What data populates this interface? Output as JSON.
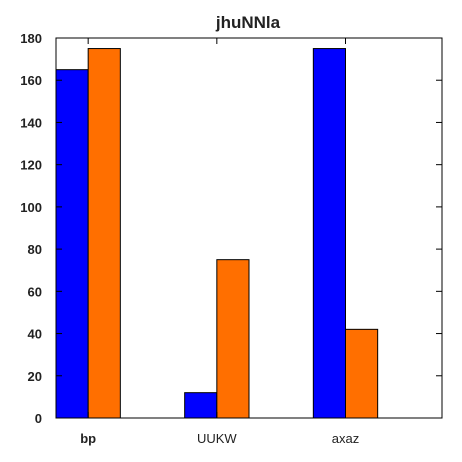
{
  "chart_data": {
    "type": "bar",
    "title": "jhuNNla",
    "xlabel": "",
    "ylabel": "",
    "categories": [
      "bp",
      "UUKW",
      "axaz"
    ],
    "series": [
      {
        "values": [
          165,
          12,
          175
        ],
        "color": "#0000ff"
      },
      {
        "values": [
          175,
          75,
          42
        ],
        "color": "#ff6f00"
      }
    ],
    "ylim": [
      0,
      180
    ],
    "yticks": [
      0,
      20,
      40,
      60,
      80,
      100,
      120,
      140,
      160,
      180
    ],
    "grid": false,
    "legend": "none"
  }
}
